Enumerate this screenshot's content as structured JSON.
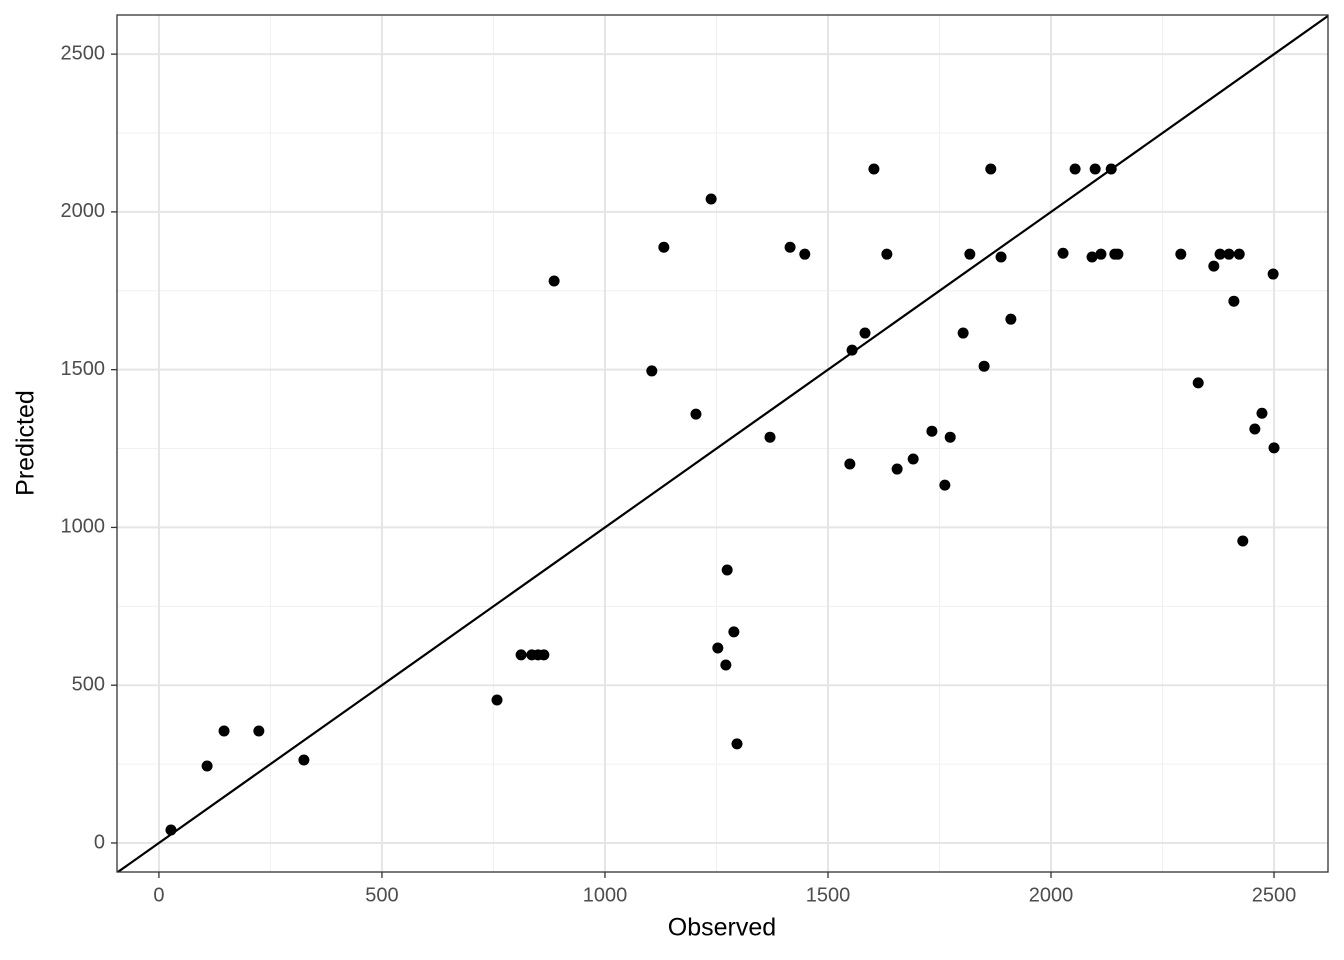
{
  "chart_data": {
    "type": "scatter",
    "x_label": "Observed",
    "y_label": "Predicted",
    "xlim": [
      -94,
      2621
    ],
    "ylim": [
      -92,
      2624
    ],
    "xticks": [
      0,
      500,
      1000,
      1500,
      2000,
      2500
    ],
    "yticks": [
      0,
      500,
      1000,
      1500,
      2000,
      2500
    ],
    "grid": true,
    "minor_grid": true,
    "identity_line": true,
    "color": "#000000",
    "x": [
      27,
      108,
      146,
      224,
      325,
      758,
      812,
      836,
      850,
      863,
      886,
      1105,
      1132,
      1204,
      1238,
      1253,
      1271,
      1274,
      1289,
      1296,
      1370,
      1415,
      1448,
      1549,
      1554,
      1583,
      1603,
      1632,
      1655,
      1691,
      1733,
      1762,
      1774,
      1803,
      1818,
      1850,
      1865,
      1888,
      1910,
      2027,
      2054,
      2092,
      2099,
      2112,
      2135,
      2143,
      2150,
      2291,
      2330,
      2365,
      2379,
      2399,
      2410,
      2422,
      2430,
      2457,
      2473,
      2498,
      2500
    ],
    "values": [
      41,
      244,
      355,
      355,
      263,
      453,
      596,
      596,
      596,
      596,
      1781,
      1496,
      1888,
      1359,
      2041,
      618,
      564,
      865,
      669,
      314,
      1286,
      1888,
      1866,
      1201,
      1562,
      1616,
      2136,
      1866,
      1185,
      1217,
      1305,
      1134,
      1286,
      1616,
      1866,
      1511,
      2136,
      1857,
      1660,
      1869,
      2136,
      1857,
      2136,
      1866,
      2136,
      1866,
      1866,
      1866,
      1458,
      1828,
      1866,
      1866,
      1717,
      1866,
      957,
      1312,
      1362,
      1803,
      1252
    ]
  }
}
